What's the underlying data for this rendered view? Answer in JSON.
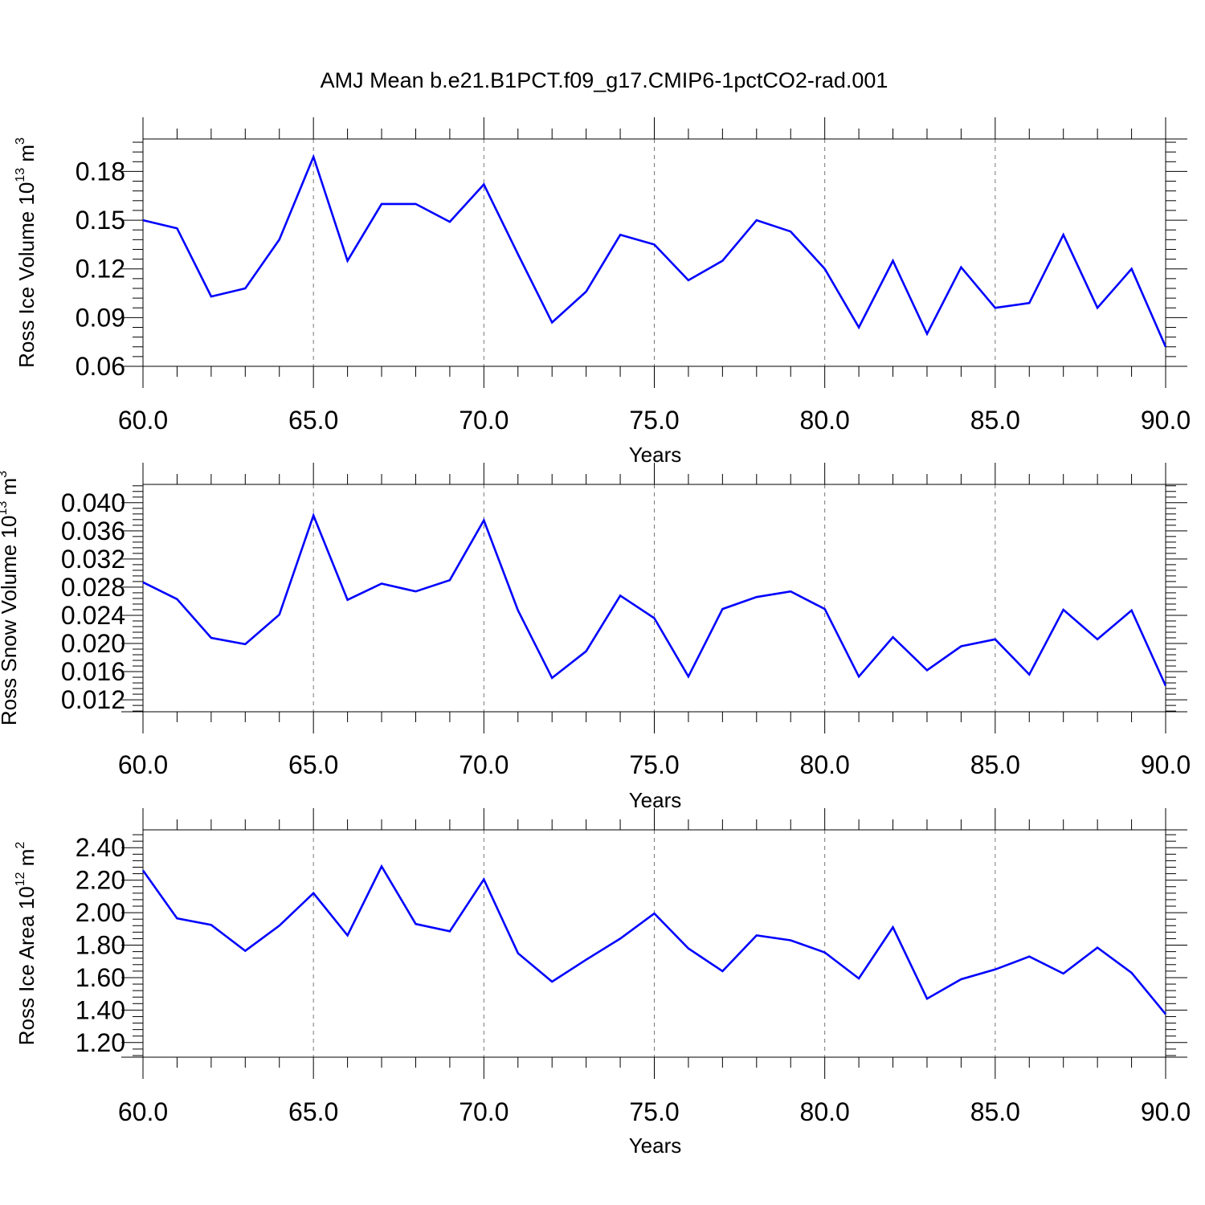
{
  "title": "AMJ Mean b.e21.B1PCT.f09_g17.CMIP6-1pctCO2-rad.001",
  "colors": {
    "line": "#0000ff",
    "axis": "#000000",
    "grid": "#777777"
  },
  "chart_data": [
    {
      "type": "line",
      "xlabel": "Years",
      "ylabel": {
        "text": "Ross Ice Volume 10",
        "exp": "13",
        "unit": " m",
        "unit_exp": "3"
      },
      "xlim": [
        60,
        90
      ],
      "ylim": [
        0.06,
        0.2
      ],
      "xticks": [
        60,
        65,
        70,
        75,
        80,
        85,
        90
      ],
      "xtick_labels": [
        "60.0",
        "65.0",
        "70.0",
        "75.0",
        "80.0",
        "85.0",
        "90.0"
      ],
      "yticks": [
        0.06,
        0.09,
        0.12,
        0.15,
        0.18
      ],
      "ytick_labels": [
        "0.06",
        "0.09",
        "0.12",
        "0.15",
        "0.18"
      ],
      "x": [
        60,
        61,
        62,
        63,
        64,
        65,
        66,
        67,
        68,
        69,
        70,
        71,
        72,
        73,
        74,
        75,
        76,
        77,
        78,
        79,
        80,
        81,
        82,
        83,
        84,
        85,
        86,
        87,
        88,
        89,
        90
      ],
      "y": [
        0.15,
        0.145,
        0.103,
        0.108,
        0.138,
        0.189,
        0.125,
        0.16,
        0.16,
        0.149,
        0.172,
        0.129,
        0.087,
        0.106,
        0.141,
        0.135,
        0.113,
        0.125,
        0.15,
        0.143,
        0.12,
        0.084,
        0.125,
        0.08,
        0.121,
        0.096,
        0.099,
        0.141,
        0.096,
        0.12,
        0.072
      ]
    },
    {
      "type": "line",
      "xlabel": "Years",
      "ylabel": {
        "text": "Ross Snow Volume 10",
        "exp": "13",
        "unit": " m",
        "unit_exp": "3"
      },
      "xlim": [
        60,
        90
      ],
      "ylim": [
        0.0103,
        0.0426
      ],
      "xticks": [
        60,
        65,
        70,
        75,
        80,
        85,
        90
      ],
      "xtick_labels": [
        "60.0",
        "65.0",
        "70.0",
        "75.0",
        "80.0",
        "85.0",
        "90.0"
      ],
      "yticks": [
        0.012,
        0.016,
        0.02,
        0.024,
        0.028,
        0.032,
        0.036,
        0.04
      ],
      "ytick_labels": [
        "0.012",
        "0.016",
        "0.020",
        "0.024",
        "0.028",
        "0.032",
        "0.036",
        "0.040"
      ],
      "x": [
        60,
        61,
        62,
        63,
        64,
        65,
        66,
        67,
        68,
        69,
        70,
        71,
        72,
        73,
        74,
        75,
        76,
        77,
        78,
        79,
        80,
        81,
        82,
        83,
        84,
        85,
        86,
        87,
        88,
        89,
        90
      ],
      "y": [
        0.0287,
        0.0263,
        0.0208,
        0.0199,
        0.0241,
        0.0382,
        0.0262,
        0.0285,
        0.0274,
        0.029,
        0.0375,
        0.0247,
        0.0151,
        0.0189,
        0.0268,
        0.0236,
        0.0153,
        0.0249,
        0.0266,
        0.0274,
        0.0249,
        0.0153,
        0.0209,
        0.0162,
        0.0196,
        0.0206,
        0.0156,
        0.0248,
        0.0206,
        0.0247,
        0.014
      ]
    },
    {
      "type": "line",
      "xlabel": "Years",
      "ylabel": {
        "text": "Ross Ice Area 10",
        "exp": "12",
        "unit": " m",
        "unit_exp": "2"
      },
      "xlim": [
        60,
        90
      ],
      "ylim": [
        1.11,
        2.51
      ],
      "xticks": [
        60,
        65,
        70,
        75,
        80,
        85,
        90
      ],
      "xtick_labels": [
        "60.0",
        "65.0",
        "70.0",
        "75.0",
        "80.0",
        "85.0",
        "90.0"
      ],
      "yticks": [
        1.2,
        1.4,
        1.6,
        1.8,
        2.0,
        2.2,
        2.4
      ],
      "ytick_labels": [
        "1.20",
        "1.40",
        "1.60",
        "1.80",
        "2.00",
        "2.20",
        "2.40"
      ],
      "x": [
        60,
        61,
        62,
        63,
        64,
        65,
        66,
        67,
        68,
        69,
        70,
        71,
        72,
        73,
        74,
        75,
        76,
        77,
        78,
        79,
        80,
        81,
        82,
        83,
        84,
        85,
        86,
        87,
        88,
        89,
        90
      ],
      "y": [
        2.26,
        1.965,
        1.925,
        1.765,
        1.92,
        2.12,
        1.86,
        2.285,
        1.93,
        1.885,
        2.205,
        1.75,
        1.575,
        1.71,
        1.84,
        1.995,
        1.78,
        1.64,
        1.86,
        1.83,
        1.755,
        1.595,
        1.91,
        1.47,
        1.59,
        1.65,
        1.73,
        1.625,
        1.785,
        1.63,
        1.375
      ]
    }
  ]
}
